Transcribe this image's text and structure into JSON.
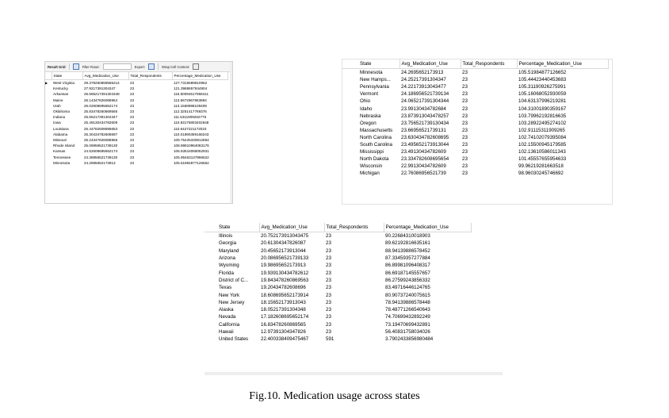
{
  "grid1": {
    "toolbar": {
      "result_grid": "Result Grid",
      "filter_rows": "Filter Rows:",
      "export": "Export:",
      "wrap_cell": "Wrap Cell Content:"
    },
    "columns": [
      "State",
      "Avg_Medication_Use",
      "Total_Respondents",
      "Percentage_Medication_Use"
    ],
    "rows": [
      [
        "West Virginia",
        "29.378260869565214",
        "23",
        "127.7315689810962"
      ],
      [
        "Kentucky",
        "27.9217391304347",
        "23",
        "121.3988657844904"
      ],
      [
        "Arkansas",
        "26.565217391304348",
        "23",
        "115.50094517958411"
      ],
      [
        "Maine",
        "26.14347826086964",
        "23",
        "113.6672967863894"
      ],
      [
        "Utah",
        "26.02608695652174",
        "23",
        "113.1568998109409"
      ],
      [
        "Oklahoma",
        "25.83478260869565",
        "23",
        "112.3251417769376"
      ],
      [
        "Indiana",
        "25.65217391304347",
        "23",
        "111.5311909262776"
      ],
      [
        "Iowa",
        "25.49130434782609",
        "23",
        "110.83175803402648"
      ],
      [
        "Louisiana",
        "25.44782608695653",
        "23",
        "110.6427221172023"
      ],
      [
        "Alabama",
        "25.30434782608697",
        "23",
        "110.01890359168243"
      ],
      [
        "Missouri",
        "25.24347826086956",
        "23",
        "109.75425330812854"
      ],
      [
        "Rhode Island",
        "25.06956521739130",
        "23",
        "108.99810964083176"
      ],
      [
        "Kansas",
        "24.52608695652174",
        "23",
        "106.63516068052931"
      ],
      [
        "Tennessee",
        "24.36956521739130",
        "23",
        "105.95463137996622"
      ],
      [
        "Minnesota",
        "24.2695652173913",
        "23",
        "105.51984877126652"
      ]
    ]
  },
  "grid2": {
    "columns": [
      "State",
      "Avg_Medication_Use",
      "Total_Respondents",
      "Percentage_Medication_Use"
    ],
    "rows": [
      [
        "Minnesota",
        "24.2695652173913",
        "23",
        "105.51984877126652"
      ],
      [
        "New Hamps...",
        "24.25217391304347",
        "23",
        "105.44423440453683"
      ],
      [
        "Pennsylvania",
        "24.22173913043477",
        "23",
        "105.31190926275991"
      ],
      [
        "Vermont",
        "24.186956521739134",
        "23",
        "105.16068052930059"
      ],
      [
        "Ohio",
        "24.065217391304344",
        "23",
        "104.63137996219281"
      ],
      [
        "Idaho",
        "23.99130434782684",
        "23",
        "104.31001890359167"
      ],
      [
        "Nebraska",
        "23.873913043478257",
        "23",
        "103.79962192816635"
      ],
      [
        "Oregon",
        "23.756521739130434",
        "23",
        "103.28922495274102"
      ],
      [
        "Massachusetts",
        "23.66956521739131",
        "23",
        "102.91115311909265"
      ],
      [
        "North Carolina",
        "23.630434782608695",
        "23",
        "102.74102079395084"
      ],
      [
        "South Carolina",
        "23.495652173913044",
        "23",
        "102.15500945179585"
      ],
      [
        "Mississippi",
        "23.49130434782609",
        "23",
        "102.13610586011343"
      ],
      [
        "North Dakota",
        "23.334782608695654",
        "23",
        "101.45557655954633"
      ],
      [
        "Wisconsin",
        "22.99130434782609",
        "23",
        "99.96219281663518"
      ],
      [
        "Michigan",
        "22.76086956521739",
        "23",
        "98.96030245746692"
      ]
    ]
  },
  "grid3": {
    "columns": [
      "State",
      "Avg_Medication_Use",
      "Total_Respondents",
      "Percentage_Medication_Use"
    ],
    "rows": [
      [
        "Illinois",
        "20.752173913043475",
        "23",
        "90.22684310018903"
      ],
      [
        "Georgia",
        "20.61304347826087",
        "23",
        "89.62192816635161"
      ],
      [
        "Maryland",
        "20.45652173913044",
        "23",
        "88.94139886578452"
      ],
      [
        "Arizona",
        "20.086956521739133",
        "23",
        "87.33459357277884"
      ],
      [
        "Wyoming",
        "19.98695652173913",
        "23",
        "86.89981096408317"
      ],
      [
        "Florida",
        "19.939130434782612",
        "23",
        "86.69187145557657"
      ],
      [
        "District of C...",
        "19.843478260869563",
        "23",
        "86.27599243856332"
      ],
      [
        "Texas",
        "19.20434782608696",
        "23",
        "83.49716446124765"
      ],
      [
        "New York",
        "18.608695652173914",
        "23",
        "80.90737240075615"
      ],
      [
        "New Jersey",
        "18.15652173913043",
        "23",
        "78.94139886578448"
      ],
      [
        "Alaska",
        "18.05217391304348",
        "23",
        "78.48771266540643"
      ],
      [
        "Nevada",
        "17.182608695652174",
        "23",
        "74.70699432892249"
      ],
      [
        "California",
        "16.83478260869565",
        "23",
        "73.19470699432891"
      ],
      [
        "Hawaii",
        "12.97391304347826",
        "23",
        "56.40831758034026"
      ],
      [
        "United States",
        "22.400338409475467",
        "591",
        "3.7902433856980484"
      ]
    ]
  },
  "caption": "Fig.10. Medication usage across states"
}
